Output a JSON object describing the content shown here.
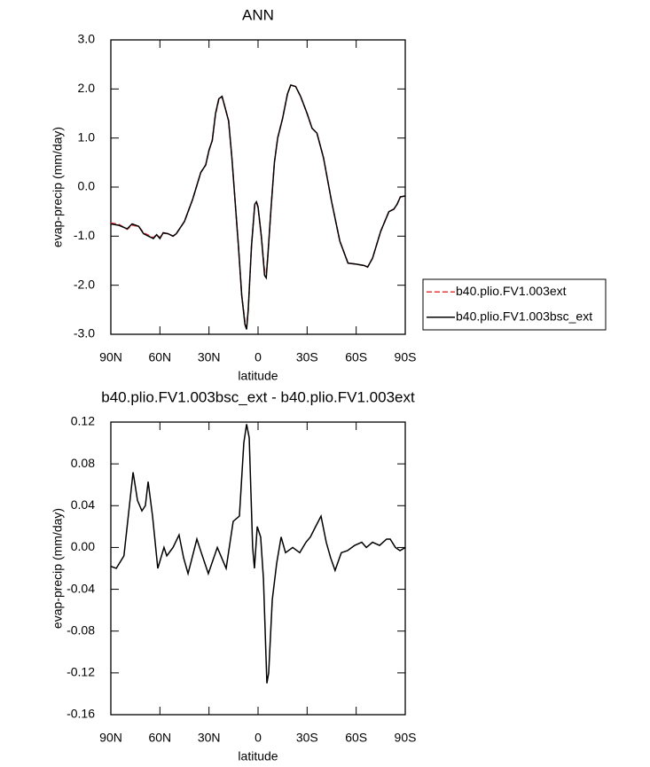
{
  "chart_data": [
    {
      "type": "line",
      "title": "ANN",
      "xlabel": "latitude",
      "ylabel": "evap-precip (mm/day)",
      "x": [
        90,
        85,
        80,
        77,
        73,
        70,
        67,
        64,
        62,
        60,
        58,
        55,
        52,
        50,
        45,
        40,
        35,
        32,
        30,
        28,
        26,
        24,
        22,
        20,
        18,
        16,
        14,
        12,
        10,
        8,
        7,
        6,
        4,
        2,
        1,
        0,
        -2,
        -4,
        -5,
        -6,
        -8,
        -10,
        -12,
        -15,
        -18,
        -20,
        -23,
        -26,
        -30,
        -33,
        -36,
        -40,
        -45,
        -50,
        -55,
        -60,
        -65,
        -67,
        -70,
        -75,
        -80,
        -83,
        -85,
        -87,
        -90
      ],
      "series": [
        {
          "name": "b40.plio.FV1.003ext",
          "color": "#e8383a",
          "dashed": true,
          "values": [
            -0.73,
            -0.76,
            -0.86,
            -0.78,
            -0.8,
            -0.93,
            -0.98,
            -1.03,
            -0.97,
            -1.03,
            -0.94,
            -0.95,
            -1.0,
            -0.95,
            -0.7,
            -0.25,
            0.3,
            0.45,
            0.75,
            0.95,
            1.48,
            1.78,
            1.84,
            1.6,
            1.35,
            0.6,
            -0.3,
            -1.2,
            -2.2,
            -2.75,
            -2.85,
            -2.5,
            -1.2,
            -0.35,
            -0.31,
            -0.42,
            -1.0,
            -1.72,
            -1.75,
            -1.4,
            -0.4,
            0.5,
            1.0,
            1.4,
            1.9,
            2.08,
            2.05,
            1.85,
            1.5,
            1.2,
            1.1,
            0.6,
            -0.3,
            -1.1,
            -1.55,
            -1.57,
            -1.6,
            -1.63,
            -1.45,
            -0.9,
            -0.5,
            -0.45,
            -0.35,
            -0.2,
            -0.18
          ]
        },
        {
          "name": "b40.plio.FV1.003bsc_ext",
          "color": "#000000",
          "dashed": false,
          "values": [
            -0.75,
            -0.78,
            -0.85,
            -0.75,
            -0.8,
            -0.95,
            -1.0,
            -1.05,
            -0.97,
            -1.05,
            -0.93,
            -0.95,
            -1.0,
            -0.95,
            -0.7,
            -0.25,
            0.3,
            0.45,
            0.75,
            0.95,
            1.5,
            1.8,
            1.85,
            1.6,
            1.35,
            0.6,
            -0.3,
            -1.2,
            -2.2,
            -2.8,
            -2.9,
            -2.5,
            -1.2,
            -0.35,
            -0.3,
            -0.4,
            -1.0,
            -1.8,
            -1.85,
            -1.4,
            -0.4,
            0.5,
            1.0,
            1.4,
            1.9,
            2.08,
            2.05,
            1.85,
            1.5,
            1.2,
            1.1,
            0.6,
            -0.3,
            -1.1,
            -1.55,
            -1.57,
            -1.6,
            -1.63,
            -1.45,
            -0.9,
            -0.5,
            -0.45,
            -0.35,
            -0.2,
            -0.18
          ]
        }
      ],
      "xlim": [
        90,
        -90
      ],
      "xticks": [
        {
          "value": 90,
          "label": "90N"
        },
        {
          "value": 60,
          "label": "60N"
        },
        {
          "value": 30,
          "label": "30N"
        },
        0,
        {
          "value": -30,
          "label": "30S"
        },
        {
          "value": -60,
          "label": "60S"
        },
        {
          "value": -90,
          "label": "90S"
        }
      ],
      "ylim": [
        -3,
        3
      ],
      "yticks": [
        {
          "value": 3,
          "label": "3.0"
        },
        {
          "value": 2,
          "label": "2.0"
        },
        {
          "value": 1,
          "label": "1.0"
        },
        {
          "value": 0,
          "label": "0.0"
        },
        {
          "value": -1,
          "label": "-1.0"
        },
        {
          "value": -2,
          "label": "-2.0"
        },
        {
          "value": -3,
          "label": "-3.0"
        }
      ],
      "legend": "right"
    },
    {
      "type": "line",
      "title": "b40.plio.FV1.003bsc_ext - b40.plio.FV1.003ext",
      "xlabel": "latitude",
      "ylabel": "evap-precip (mm/day)",
      "x": [
        90,
        86.7,
        82,
        76.4,
        73.7,
        71,
        68.9,
        67.2,
        64.5,
        61.3,
        57.5,
        55.8,
        52,
        48.3,
        45.5,
        42.8,
        37.4,
        34.7,
        30.4,
        24.9,
        19.5,
        15.2,
        11.4,
        8.7,
        7,
        5.4,
        3.3,
        2.2,
        0.5,
        -1.6,
        -3.3,
        -5.4,
        -6.5,
        -8.7,
        -11.4,
        -14.1,
        -16.8,
        -21.2,
        -25.5,
        -29.3,
        -32,
        -35.2,
        -38.5,
        -41.7,
        -44.4,
        -47.1,
        -50.9,
        -54.7,
        -59.1,
        -63.4,
        -66.2,
        -70,
        -74.3,
        -78.6,
        -80.8,
        -84,
        -86.8,
        -90
      ],
      "values": [
        -0.018,
        -0.02,
        -0.008,
        0.072,
        0.045,
        0.035,
        0.04,
        0.063,
        0.03,
        -0.02,
        0,
        -0.008,
        0,
        0.012,
        -0.01,
        -0.025,
        0.008,
        -0.005,
        -0.025,
        0,
        -0.02,
        0.025,
        0.03,
        0.1,
        0.118,
        0.105,
        0,
        -0.02,
        0.02,
        0.01,
        -0.03,
        -0.13,
        -0.12,
        -0.05,
        -0.015,
        0.01,
        -0.005,
        0,
        -0.005,
        0.005,
        0.01,
        0.02,
        0.03,
        0.005,
        -0.01,
        -0.022,
        -0.005,
        -0.003,
        0.002,
        0.005,
        0,
        0.005,
        0.002,
        0.008,
        0.008,
        0,
        -0.003,
        0
      ],
      "color": "#000000",
      "xlim": [
        90,
        -90
      ],
      "xticks": [
        {
          "value": 90,
          "label": "90N"
        },
        {
          "value": 60,
          "label": "60N"
        },
        {
          "value": 30,
          "label": "30N"
        },
        0,
        {
          "value": -30,
          "label": "30S"
        },
        {
          "value": -60,
          "label": "60S"
        },
        {
          "value": -90,
          "label": "90S"
        }
      ],
      "ylim": [
        -0.16,
        0.12
      ],
      "yticks": [
        0.12,
        0.08,
        0.04,
        {
          "value": 0,
          "label": "0.00"
        },
        -0.04,
        -0.08,
        -0.12,
        -0.16
      ]
    }
  ]
}
